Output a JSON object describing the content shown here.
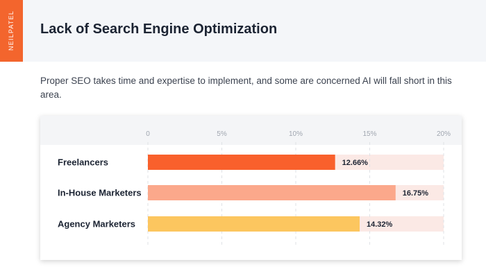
{
  "brand": "NEILPATEL",
  "title": "Lack of Search Engine Optimization",
  "subtitle": "Proper SEO takes time and expertise to implement, and some are concerned AI will fall short in this area.",
  "colors": {
    "brand_orange": "#f3652d",
    "track": "#fbe9e5",
    "freelancers": "#f9602c",
    "in_house": "#fba88b",
    "agency": "#fcc65f"
  },
  "chart_data": {
    "type": "bar",
    "orientation": "horizontal",
    "categories": [
      "Freelancers",
      "In-House Marketers",
      "Agency Marketers"
    ],
    "values": [
      12.66,
      16.75,
      14.32
    ],
    "value_labels": [
      "12.66%",
      "16.75%",
      "14.32%"
    ],
    "xlim": [
      0,
      20
    ],
    "xticks": [
      0,
      5,
      10,
      15,
      20
    ],
    "xtick_labels": [
      "0",
      "5%",
      "10%",
      "15%",
      "20%"
    ],
    "grid": true,
    "legend": "none"
  }
}
